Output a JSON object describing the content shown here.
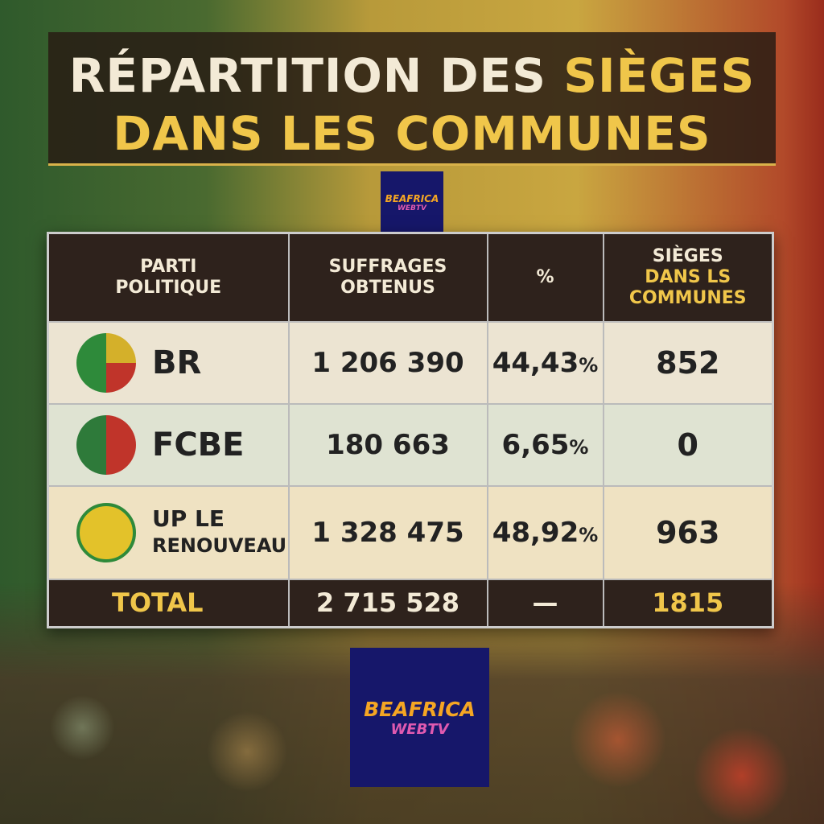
{
  "title": {
    "line1_white": "RÉPARTITION DES",
    "line1_gold": "SIÈGES",
    "line2": "DANS LES COMMUNES"
  },
  "logo": {
    "brand": "BEAFRICA",
    "sub": "WEBTV"
  },
  "table": {
    "headers": {
      "party": "PARTI POLITIQUE",
      "votes": "SUFFRAGES OBTENUS",
      "pct": "%",
      "seats_1": "SIÈGES",
      "seats_2": "DANS LS COMMUNES"
    },
    "rows": [
      {
        "party": "BR",
        "votes": "1 206 390",
        "pct": "44,43",
        "seats": "852"
      },
      {
        "party": "FCBE",
        "votes": "180 663",
        "pct": "6,65",
        "seats": "0"
      },
      {
        "party_1": "UP LE",
        "party_2": "RENOUVEAU",
        "votes": "1 328 475",
        "pct": "48,92",
        "seats": "963"
      }
    ],
    "pct_sign": "%",
    "total": {
      "label": "TOTAL",
      "votes": "2 715 528",
      "pct": "—",
      "seats": "1815"
    }
  }
}
